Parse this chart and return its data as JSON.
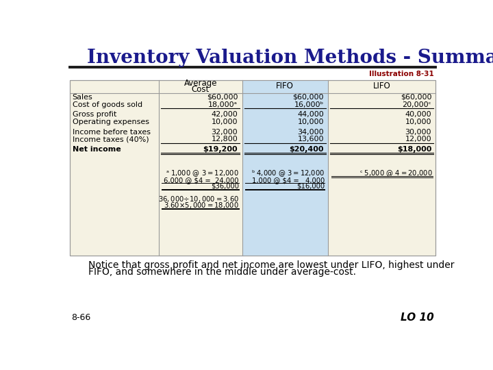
{
  "title": "Inventory Valuation Methods - Summary",
  "title_color": "#1A1A8C",
  "illustration_label": "Illustration 8-31",
  "illustration_color": "#8B0000",
  "bg_color": "#FFFFFF",
  "table_bg": "#F5F2E3",
  "fifo_bg": "#C8DFF0",
  "notice_text1": "Notice that gross profit and net income are lowest under LIFO, highest under",
  "notice_text2": "FIFO, and somewhere in the middle under average-cost.",
  "bottom_left": "8-66",
  "bottom_right": "LO 10"
}
